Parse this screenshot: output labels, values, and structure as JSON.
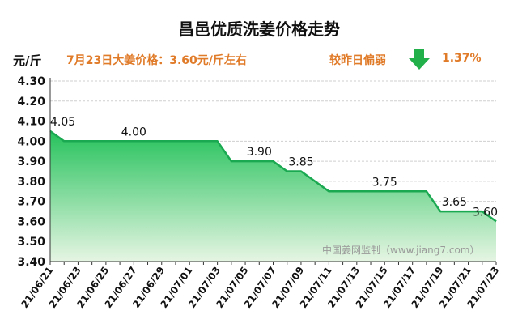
{
  "header": {
    "title": "昌邑优质洗姜价格走势",
    "unit": "元/斤",
    "price_note": "7月23日大姜价格：3.60元/斤左右",
    "change_label": "较昨日偏弱",
    "change_pct": "1.37%",
    "change_icon": "down-arrow-icon"
  },
  "colors": {
    "line": "#1aa850",
    "fill_top": "#26c25c",
    "fill_bottom": "#e6f5e3",
    "accent": "#e07b29",
    "arrow": "#22b04b",
    "grid": "#cfcfcf"
  },
  "watermark": "中国姜网监制（www.jiang7.com）",
  "chart_data": {
    "type": "area",
    "title": "昌邑优质洗姜价格走势",
    "ylabel": "元/斤",
    "xlabel": "",
    "ylim": [
      3.4,
      4.3
    ],
    "yticks": [
      "3.40",
      "3.50",
      "3.60",
      "3.70",
      "3.80",
      "3.90",
      "4.00",
      "4.10",
      "4.20",
      "4.30"
    ],
    "x": [
      "21/06/21",
      "21/06/22",
      "21/06/23",
      "21/06/24",
      "21/06/25",
      "21/06/26",
      "21/06/27",
      "21/06/28",
      "21/06/29",
      "21/06/30",
      "21/07/01",
      "21/07/02",
      "21/07/03",
      "21/07/04",
      "21/07/05",
      "21/07/06",
      "21/07/07",
      "21/07/08",
      "21/07/09",
      "21/07/10",
      "21/07/11",
      "21/07/12",
      "21/07/13",
      "21/07/14",
      "21/07/15",
      "21/07/16",
      "21/07/17",
      "21/07/18",
      "21/07/19",
      "21/07/20",
      "21/07/21",
      "21/07/22",
      "21/07/23"
    ],
    "xtick_labels": [
      "21/06/21",
      "21/06/23",
      "21/06/25",
      "21/06/27",
      "21/06/29",
      "21/07/01",
      "21/07/03",
      "21/07/05",
      "21/07/07",
      "21/07/09",
      "21/07/11",
      "21/07/13",
      "21/07/15",
      "21/07/17",
      "21/07/19",
      "21/07/21",
      "21/07/23"
    ],
    "values": [
      4.05,
      4.0,
      4.0,
      4.0,
      4.0,
      4.0,
      4.0,
      4.0,
      4.0,
      4.0,
      4.0,
      4.0,
      4.0,
      3.9,
      3.9,
      3.9,
      3.9,
      3.85,
      3.85,
      3.8,
      3.75,
      3.75,
      3.75,
      3.75,
      3.75,
      3.75,
      3.75,
      3.75,
      3.65,
      3.65,
      3.65,
      3.65,
      3.6
    ],
    "annotations": [
      {
        "index": 0,
        "text": "4.05"
      },
      {
        "index": 6,
        "text": "4.00"
      },
      {
        "index": 15,
        "text": "3.90"
      },
      {
        "index": 18,
        "text": "3.85"
      },
      {
        "index": 24,
        "text": "3.75"
      },
      {
        "index": 29,
        "text": "3.65"
      },
      {
        "index": 32,
        "text": "3.60"
      }
    ],
    "grid": true
  }
}
